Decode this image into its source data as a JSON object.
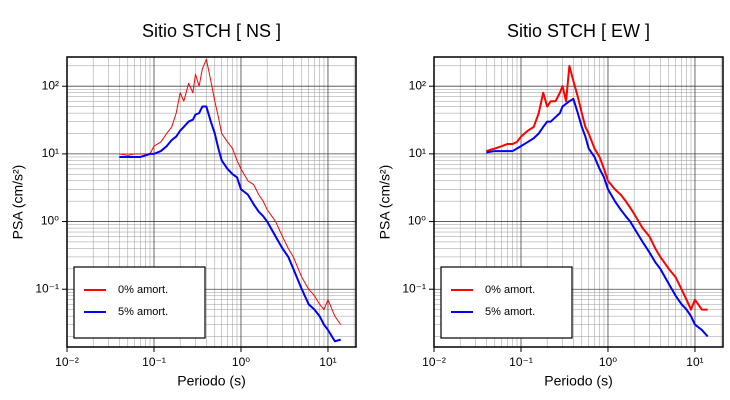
{
  "chart_data": [
    {
      "type": "line",
      "title": "Sitio STCH [ NS ]",
      "xlabel": "Periodo (s)",
      "ylabel": "PSA (cm/s²)",
      "log_x": true,
      "log_y": true,
      "grid": true,
      "minor_grid": true,
      "legend": "lower left",
      "xlim": [
        0.01,
        21
      ],
      "ylim": [
        0.014,
        270
      ],
      "xticks": [
        {
          "value": 0.01,
          "label": "10⁻²"
        },
        {
          "value": 0.1,
          "label": "10⁻¹"
        },
        {
          "value": 1,
          "label": "10⁰"
        },
        {
          "value": 10,
          "label": "10¹"
        }
      ],
      "yticks": [
        {
          "value": 0.1,
          "label": "10⁻¹"
        },
        {
          "value": 1,
          "label": "10⁰"
        },
        {
          "value": 10,
          "label": "10¹"
        },
        {
          "value": 100,
          "label": "10²"
        }
      ],
      "x": [
        0.04,
        0.05,
        0.06,
        0.07,
        0.08,
        0.09,
        0.1,
        0.12,
        0.14,
        0.16,
        0.18,
        0.2,
        0.22,
        0.25,
        0.28,
        0.3,
        0.33,
        0.36,
        0.4,
        0.45,
        0.5,
        0.55,
        0.6,
        0.7,
        0.8,
        0.9,
        1.0,
        1.2,
        1.4,
        1.6,
        1.8,
        2,
        2.5,
        3,
        3.5,
        4,
        5,
        6,
        7,
        8,
        9,
        10,
        12,
        14
      ],
      "series": [
        {
          "name": "0% amort.",
          "color": "#ff0000",
          "width": 1,
          "values": [
            10,
            9.5,
            10,
            10,
            10,
            10,
            13,
            15,
            20,
            25,
            40,
            80,
            60,
            110,
            80,
            150,
            100,
            180,
            250,
            120,
            60,
            35,
            20,
            15,
            12,
            8,
            6,
            4,
            3.5,
            2.5,
            2,
            1.5,
            1.0,
            0.6,
            0.4,
            0.3,
            0.15,
            0.1,
            0.08,
            0.06,
            0.05,
            0.07,
            0.04,
            0.03
          ]
        },
        {
          "name": "5% amort.",
          "color": "#0000ff",
          "width": 2,
          "values": [
            9,
            9,
            9,
            9,
            9.5,
            10,
            10,
            11,
            13,
            16,
            18,
            22,
            25,
            30,
            32,
            38,
            40,
            50,
            50,
            30,
            20,
            12,
            8,
            6,
            5,
            4.5,
            3,
            2.5,
            1.8,
            1.4,
            1.2,
            1.0,
            0.6,
            0.4,
            0.3,
            0.2,
            0.1,
            0.06,
            0.05,
            0.04,
            0.03,
            0.025,
            0.017,
            0.018
          ]
        }
      ]
    },
    {
      "type": "line",
      "title": "Sitio STCH [ EW ]",
      "xlabel": "Periodo (s)",
      "ylabel": "PSA (cm/s²)",
      "log_x": true,
      "log_y": true,
      "grid": true,
      "minor_grid": true,
      "legend": "lower left",
      "xlim": [
        0.01,
        21
      ],
      "ylim": [
        0.014,
        270
      ],
      "xticks": [
        {
          "value": 0.01,
          "label": "10⁻²"
        },
        {
          "value": 0.1,
          "label": "10⁻¹"
        },
        {
          "value": 1,
          "label": "10⁰"
        },
        {
          "value": 10,
          "label": "10¹"
        }
      ],
      "yticks": [
        {
          "value": 0.1,
          "label": "10⁻¹"
        },
        {
          "value": 1,
          "label": "10⁰"
        },
        {
          "value": 10,
          "label": "10¹"
        },
        {
          "value": 100,
          "label": "10²"
        }
      ],
      "x": [
        0.04,
        0.05,
        0.06,
        0.07,
        0.08,
        0.09,
        0.1,
        0.12,
        0.14,
        0.16,
        0.18,
        0.2,
        0.22,
        0.25,
        0.28,
        0.3,
        0.33,
        0.36,
        0.4,
        0.45,
        0.5,
        0.55,
        0.6,
        0.7,
        0.8,
        0.9,
        1.0,
        1.2,
        1.4,
        1.6,
        1.8,
        2,
        2.5,
        3,
        3.5,
        4,
        5,
        6,
        7,
        8,
        9,
        10,
        12,
        14
      ],
      "series": [
        {
          "name": "0% amort.",
          "color": "#ff0000",
          "width": 2,
          "values": [
            11,
            12,
            13,
            14,
            14,
            15,
            18,
            22,
            25,
            40,
            80,
            50,
            60,
            60,
            80,
            100,
            60,
            200,
            120,
            70,
            40,
            25,
            20,
            12,
            9,
            6,
            4,
            3,
            2.5,
            2,
            1.6,
            1.3,
            0.8,
            0.6,
            0.4,
            0.3,
            0.2,
            0.15,
            0.1,
            0.07,
            0.05,
            0.07,
            0.05,
            0.05
          ]
        },
        {
          "name": "5% amort.",
          "color": "#0000ff",
          "width": 2,
          "values": [
            10.5,
            11,
            11,
            11,
            11,
            12,
            13,
            15,
            17,
            20,
            25,
            30,
            30,
            35,
            40,
            50,
            55,
            60,
            65,
            40,
            25,
            18,
            12,
            9,
            6,
            4.5,
            3,
            2,
            1.5,
            1.2,
            1.0,
            0.8,
            0.5,
            0.35,
            0.25,
            0.2,
            0.12,
            0.08,
            0.06,
            0.05,
            0.04,
            0.03,
            0.025,
            0.02
          ]
        }
      ]
    }
  ]
}
